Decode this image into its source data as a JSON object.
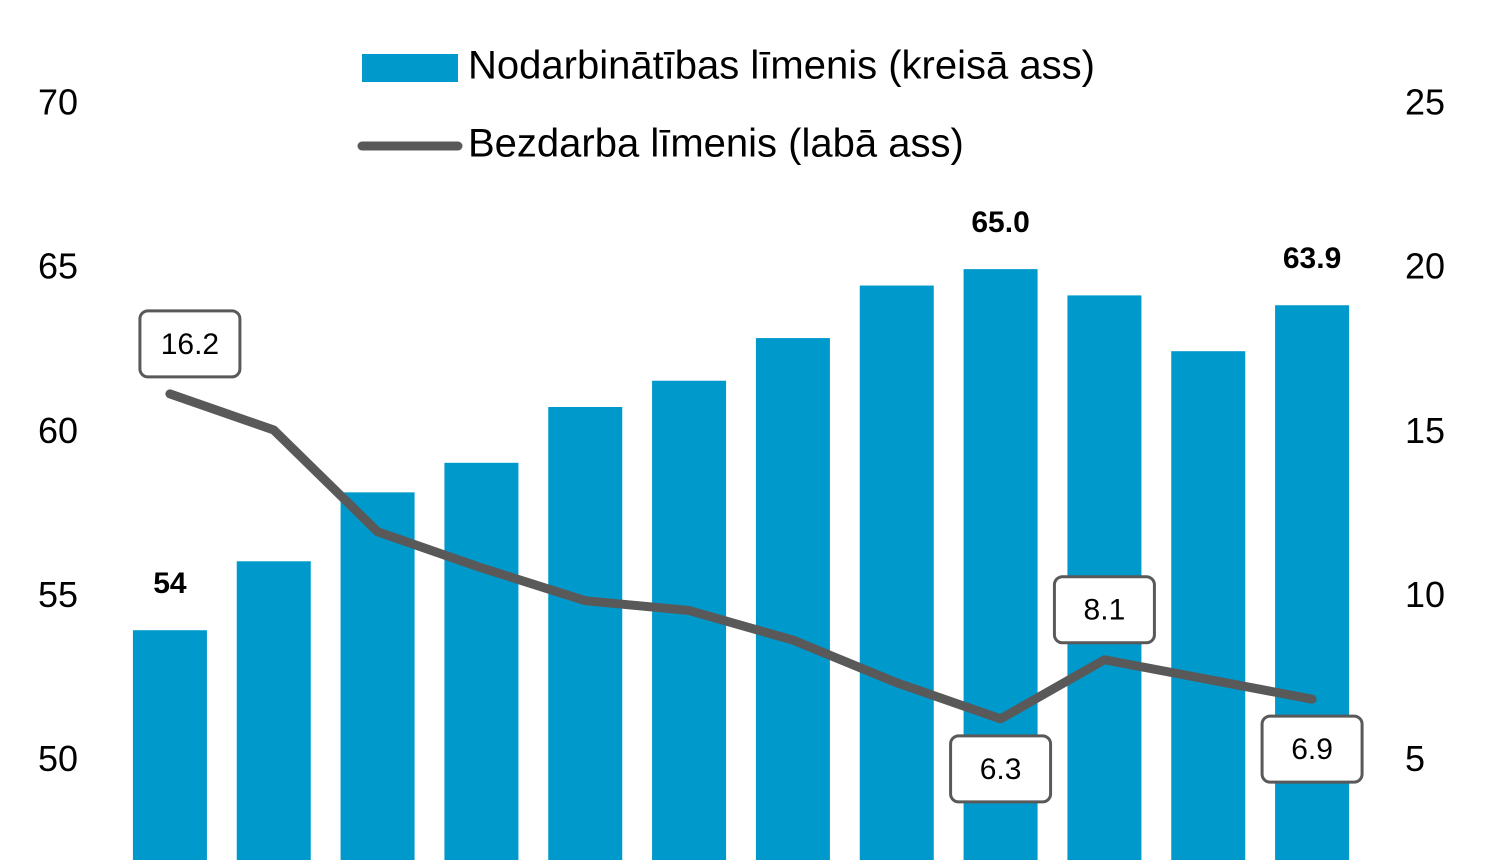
{
  "chart_data": {
    "type": "bar-line",
    "categories": [
      null,
      null,
      null,
      null,
      null,
      null,
      null,
      null,
      null,
      null,
      null,
      null
    ],
    "series": [
      {
        "name": "Nodarbinātības līmenis (kreisā ass)",
        "type": "bar",
        "color": "#0099cc",
        "values": [
          54,
          56.1,
          58.2,
          59.1,
          60.8,
          61.6,
          62.9,
          64.5,
          65.0,
          64.2,
          62.5,
          63.9
        ],
        "value_labels": [
          "54",
          null,
          null,
          null,
          null,
          null,
          null,
          null,
          "65.0",
          null,
          null,
          "63.9"
        ]
      },
      {
        "name": "Bezdarba līmenis (labā ass)",
        "type": "line",
        "axis": "y2",
        "color": "#595959",
        "values": [
          16.2,
          15.1,
          12.0,
          10.9,
          9.9,
          9.6,
          8.7,
          7.4,
          6.3,
          8.1,
          7.5,
          6.9
        ],
        "value_labels": [
          "16.2",
          null,
          null,
          null,
          null,
          null,
          null,
          null,
          "6.3",
          "8.1",
          null,
          "6.9"
        ]
      }
    ],
    "ylim": [
      47,
      70
    ],
    "yticks": [
      50,
      55,
      60,
      65,
      70
    ],
    "y2lim": [
      2,
      25
    ],
    "y2ticks": [
      5,
      10,
      15,
      20,
      25
    ]
  }
}
